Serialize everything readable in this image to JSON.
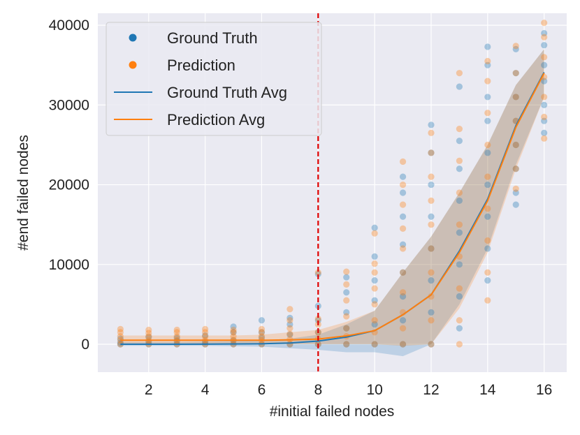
{
  "chart_data": {
    "type": "scatter",
    "xlabel": "#initial failed nodes",
    "ylabel": "#end failed nodes",
    "xlim": [
      0.2,
      16.8
    ],
    "ylim": [
      -3500,
      41500
    ],
    "xticks": [
      2,
      4,
      6,
      8,
      10,
      12,
      14,
      16
    ],
    "xtick_labels": [
      "2",
      "4",
      "6",
      "8",
      "10",
      "12",
      "14",
      "16"
    ],
    "yticks": [
      0,
      10000,
      20000,
      30000,
      40000
    ],
    "ytick_labels": [
      "0",
      "10000",
      "20000",
      "30000",
      "40000"
    ],
    "grid": true,
    "legend_position": "top-left",
    "legend": [
      {
        "label": "Ground Truth",
        "kind": "marker",
        "color": "#1f77b4"
      },
      {
        "label": "Prediction",
        "kind": "marker",
        "color": "#ff7f0e"
      },
      {
        "label": "Ground Truth Avg",
        "kind": "line",
        "color": "#1f77b4"
      },
      {
        "label": "Prediction Avg",
        "kind": "line",
        "color": "#ff7f0e"
      }
    ],
    "vline": {
      "x": 8,
      "color": "#e00000",
      "style": "dashed"
    },
    "x": [
      1,
      2,
      3,
      4,
      5,
      6,
      7,
      8,
      9,
      10,
      11,
      12,
      13,
      14,
      15,
      16
    ],
    "series": [
      {
        "name": "Ground Truth Avg",
        "color": "#1f77b4",
        "values": [
          0,
          0,
          0,
          10,
          30,
          60,
          150,
          400,
          900,
          1700,
          3700,
          6200,
          11700,
          18200,
          27400,
          34100
        ],
        "band_low": [
          -200,
          -200,
          -200,
          -200,
          -250,
          -300,
          -500,
          -700,
          -1000,
          -1000,
          -1500,
          0,
          5000,
          12000,
          22500,
          31000
        ],
        "band_high": [
          300,
          300,
          300,
          350,
          400,
          500,
          700,
          1200,
          2500,
          4200,
          9000,
          13500,
          19000,
          25000,
          32500,
          37000
        ]
      },
      {
        "name": "Prediction Avg",
        "color": "#ff7f0e",
        "values": [
          500,
          500,
          500,
          500,
          500,
          500,
          550,
          650,
          1050,
          1700,
          3700,
          6200,
          11500,
          18000,
          27200,
          34000
        ],
        "band_low": [
          0,
          0,
          0,
          0,
          0,
          0,
          0,
          0,
          0,
          0,
          -200,
          0,
          4500,
          11500,
          22000,
          31000
        ],
        "band_high": [
          1100,
          1100,
          1100,
          1100,
          1100,
          1200,
          1500,
          1800,
          2800,
          4200,
          9000,
          13500,
          19000,
          25000,
          32500,
          37000
        ]
      }
    ],
    "scatter_series": [
      {
        "name": "Ground Truth",
        "color": "#1f77b4",
        "points": [
          [
            1,
            0
          ],
          [
            1,
            200
          ],
          [
            1,
            700
          ],
          [
            2,
            0
          ],
          [
            2,
            300
          ],
          [
            2,
            900
          ],
          [
            3,
            0
          ],
          [
            3,
            400
          ],
          [
            3,
            800
          ],
          [
            4,
            0
          ],
          [
            4,
            300
          ],
          [
            4,
            1100
          ],
          [
            5,
            0
          ],
          [
            5,
            500
          ],
          [
            5,
            1500
          ],
          [
            5,
            2200
          ],
          [
            6,
            0
          ],
          [
            6,
            800
          ],
          [
            6,
            1500
          ],
          [
            6,
            3000
          ],
          [
            7,
            0
          ],
          [
            7,
            1200
          ],
          [
            7,
            2500
          ],
          [
            7,
            3300
          ],
          [
            8,
            0
          ],
          [
            8,
            1500
          ],
          [
            8,
            3000
          ],
          [
            8,
            4800
          ],
          [
            8,
            8800
          ],
          [
            9,
            0
          ],
          [
            9,
            2000
          ],
          [
            9,
            4000
          ],
          [
            9,
            6500
          ],
          [
            9,
            8400
          ],
          [
            10,
            0
          ],
          [
            10,
            2500
          ],
          [
            10,
            5500
          ],
          [
            10,
            8000
          ],
          [
            10,
            11000
          ],
          [
            10,
            14600
          ],
          [
            11,
            0
          ],
          [
            11,
            3000
          ],
          [
            11,
            6000
          ],
          [
            11,
            9000
          ],
          [
            11,
            12500
          ],
          [
            11,
            16000
          ],
          [
            11,
            19000
          ],
          [
            11,
            21000
          ],
          [
            12,
            0
          ],
          [
            12,
            4000
          ],
          [
            12,
            8000
          ],
          [
            12,
            12000
          ],
          [
            12,
            16000
          ],
          [
            12,
            20000
          ],
          [
            12,
            24000
          ],
          [
            12,
            27500
          ],
          [
            13,
            2000
          ],
          [
            13,
            6000
          ],
          [
            13,
            10000
          ],
          [
            13,
            14000
          ],
          [
            13,
            18000
          ],
          [
            13,
            22000
          ],
          [
            13,
            25500
          ],
          [
            13,
            32300
          ],
          [
            14,
            8000
          ],
          [
            14,
            12000
          ],
          [
            14,
            16000
          ],
          [
            14,
            20000
          ],
          [
            14,
            24000
          ],
          [
            14,
            28000
          ],
          [
            14,
            31000
          ],
          [
            14,
            35000
          ],
          [
            14,
            37300
          ],
          [
            15,
            17500
          ],
          [
            15,
            19000
          ],
          [
            15,
            22000
          ],
          [
            15,
            25000
          ],
          [
            15,
            28000
          ],
          [
            15,
            31000
          ],
          [
            15,
            34000
          ],
          [
            15,
            37000
          ],
          [
            16,
            26500
          ],
          [
            16,
            28000
          ],
          [
            16,
            30000
          ],
          [
            16,
            33000
          ],
          [
            16,
            35000
          ],
          [
            16,
            37500
          ],
          [
            16,
            39000
          ]
        ]
      },
      {
        "name": "Prediction",
        "color": "#ff7f0e",
        "points": [
          [
            1,
            0
          ],
          [
            1,
            500
          ],
          [
            1,
            1000
          ],
          [
            1,
            1500
          ],
          [
            1,
            1900
          ],
          [
            2,
            0
          ],
          [
            2,
            500
          ],
          [
            2,
            1000
          ],
          [
            2,
            1400
          ],
          [
            2,
            1800
          ],
          [
            3,
            0
          ],
          [
            3,
            500
          ],
          [
            3,
            1000
          ],
          [
            3,
            1500
          ],
          [
            3,
            1800
          ],
          [
            4,
            0
          ],
          [
            4,
            500
          ],
          [
            4,
            1000
          ],
          [
            4,
            1500
          ],
          [
            4,
            1900
          ],
          [
            5,
            0
          ],
          [
            5,
            500
          ],
          [
            5,
            1000
          ],
          [
            5,
            1500
          ],
          [
            5,
            1800
          ],
          [
            6,
            0
          ],
          [
            6,
            500
          ],
          [
            6,
            1000
          ],
          [
            6,
            1500
          ],
          [
            6,
            1900
          ],
          [
            7,
            0
          ],
          [
            7,
            600
          ],
          [
            7,
            1300
          ],
          [
            7,
            2000
          ],
          [
            7,
            3000
          ],
          [
            7,
            4400
          ],
          [
            8,
            0
          ],
          [
            8,
            700
          ],
          [
            8,
            1500
          ],
          [
            8,
            2500
          ],
          [
            8,
            3200
          ],
          [
            8,
            9000
          ],
          [
            9,
            0
          ],
          [
            9,
            1000
          ],
          [
            9,
            2000
          ],
          [
            9,
            3500
          ],
          [
            9,
            5500
          ],
          [
            9,
            7500
          ],
          [
            9,
            9100
          ],
          [
            10,
            0
          ],
          [
            10,
            1500
          ],
          [
            10,
            3000
          ],
          [
            10,
            5000
          ],
          [
            10,
            7000
          ],
          [
            10,
            9000
          ],
          [
            10,
            10100
          ],
          [
            10,
            13900
          ],
          [
            11,
            0
          ],
          [
            11,
            2000
          ],
          [
            11,
            4000
          ],
          [
            11,
            6500
          ],
          [
            11,
            9000
          ],
          [
            11,
            12000
          ],
          [
            11,
            14500
          ],
          [
            11,
            17500
          ],
          [
            11,
            20000
          ],
          [
            11,
            22900
          ],
          [
            12,
            0
          ],
          [
            12,
            3000
          ],
          [
            12,
            6000
          ],
          [
            12,
            9000
          ],
          [
            12,
            12000
          ],
          [
            12,
            15000
          ],
          [
            12,
            18000
          ],
          [
            12,
            21000
          ],
          [
            12,
            24000
          ],
          [
            12,
            26500
          ],
          [
            13,
            0
          ],
          [
            13,
            3000
          ],
          [
            13,
            7000
          ],
          [
            13,
            11000
          ],
          [
            13,
            15000
          ],
          [
            13,
            19000
          ],
          [
            13,
            23000
          ],
          [
            13,
            27000
          ],
          [
            13,
            34000
          ],
          [
            14,
            5500
          ],
          [
            14,
            9000
          ],
          [
            14,
            13000
          ],
          [
            14,
            17000
          ],
          [
            14,
            21000
          ],
          [
            14,
            25000
          ],
          [
            14,
            29000
          ],
          [
            14,
            33000
          ],
          [
            14,
            35500
          ],
          [
            15,
            19500
          ],
          [
            15,
            22000
          ],
          [
            15,
            25000
          ],
          [
            15,
            28000
          ],
          [
            15,
            31000
          ],
          [
            15,
            34000
          ],
          [
            15,
            37400
          ],
          [
            16,
            25800
          ],
          [
            16,
            28500
          ],
          [
            16,
            31000
          ],
          [
            16,
            33500
          ],
          [
            16,
            36000
          ],
          [
            16,
            38500
          ],
          [
            16,
            40300
          ]
        ]
      }
    ]
  }
}
